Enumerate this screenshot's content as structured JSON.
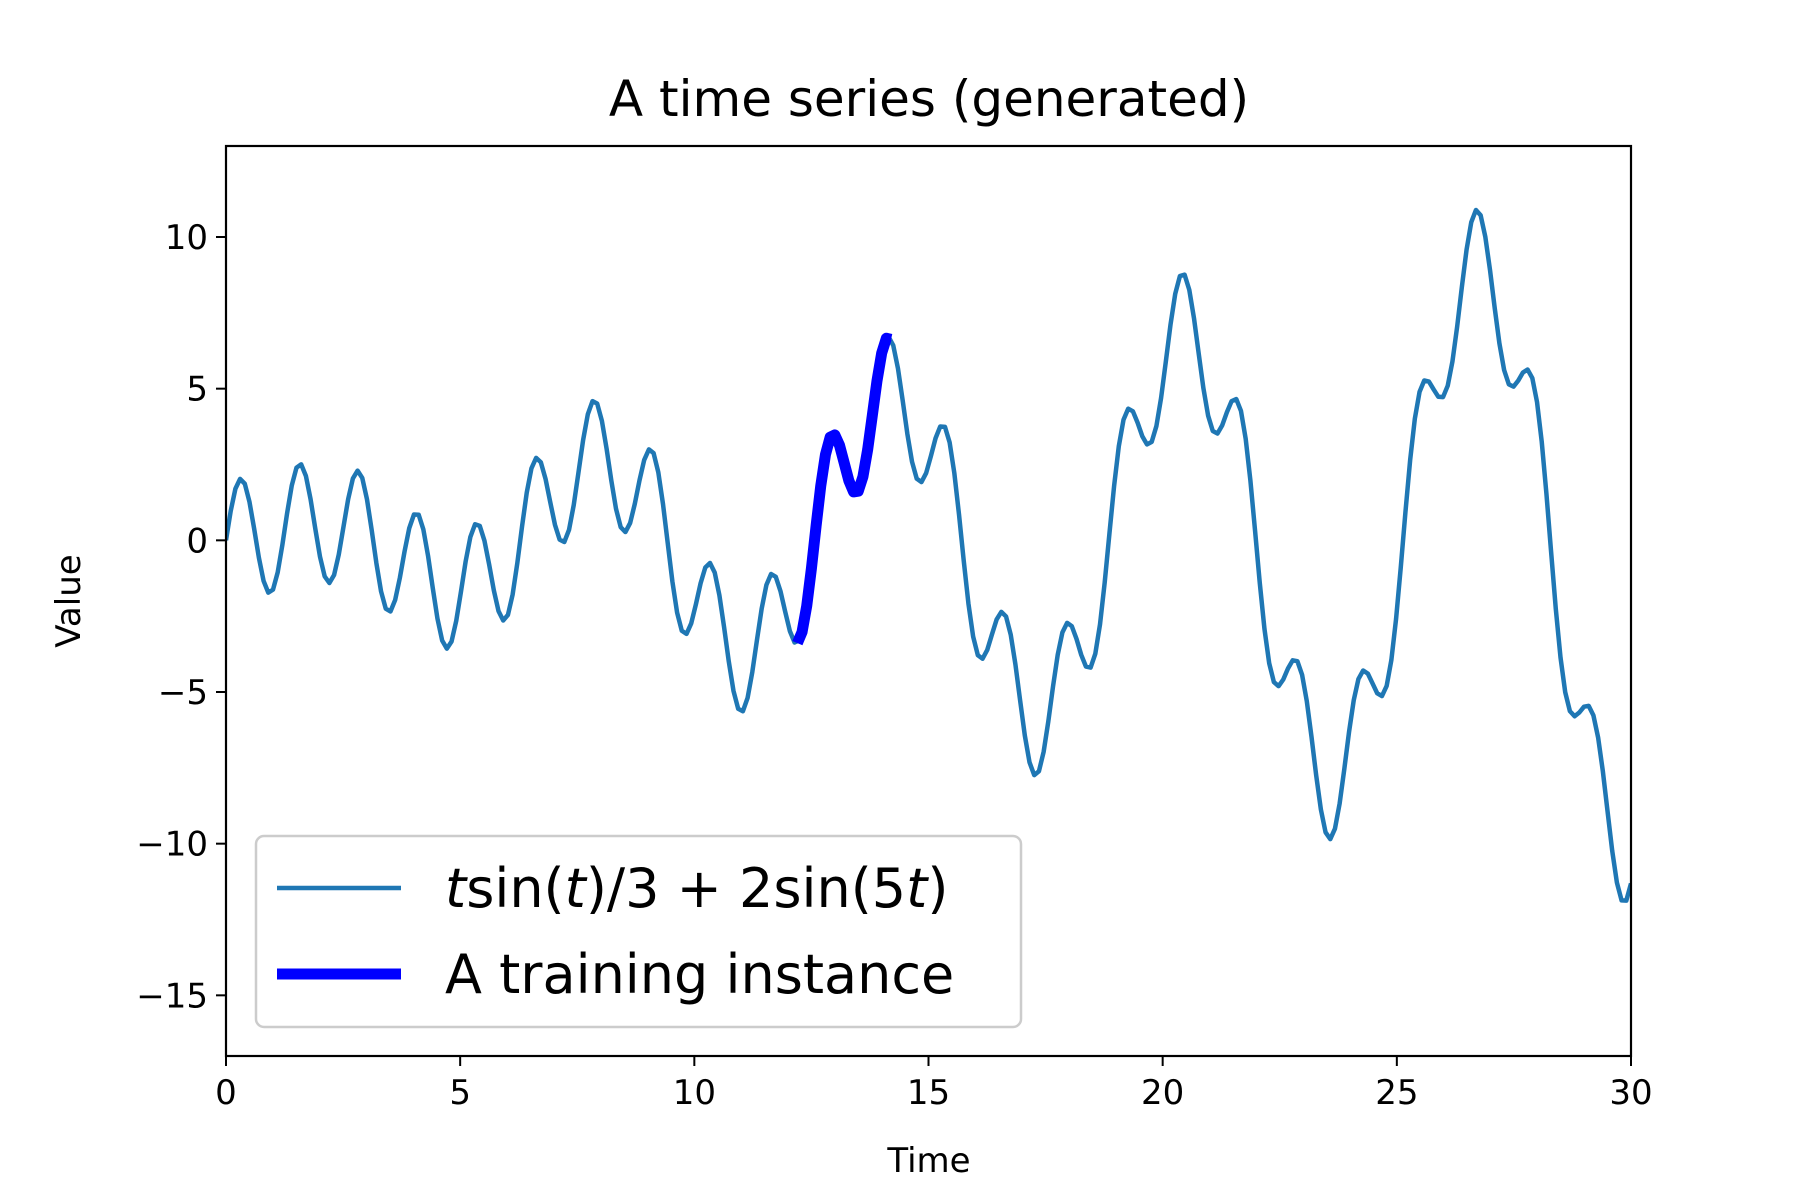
{
  "chart_data": {
    "type": "line",
    "title": "A time series (generated)",
    "xlabel": "Time",
    "ylabel": "Value",
    "xlim": [
      0,
      30
    ],
    "ylim": [
      -17,
      13
    ],
    "xticks": [
      0,
      5,
      10,
      15,
      20,
      25,
      30
    ],
    "yticks": [
      -15,
      -10,
      -5,
      0,
      5,
      10
    ],
    "xtick_labels": [
      "0",
      "5",
      "10",
      "15",
      "20",
      "25",
      "30"
    ],
    "ytick_labels": [
      "−15",
      "−10",
      "−5",
      "0",
      "5",
      "10"
    ],
    "grid": false,
    "legend_placement": "lower-left",
    "series": [
      {
        "name": "tsin(t)/3 + 2sin(5t)",
        "color": "#1f77b4",
        "x_start": 0,
        "x_end": 30,
        "samples": 300
      },
      {
        "name": "A training instance",
        "color": "#0000ff",
        "x_start": 12.2,
        "x_end": 14.2,
        "samples": 21
      }
    ],
    "legend": [
      {
        "label_parts": [
          {
            "text": "t",
            "italic": true
          },
          {
            "text": "sin(",
            "italic": false
          },
          {
            "text": "t",
            "italic": true
          },
          {
            "text": ")/3 + 2sin(5",
            "italic": false
          },
          {
            "text": "t",
            "italic": true
          },
          {
            "text": ")",
            "italic": false
          }
        ],
        "color": "#1f77b4"
      },
      {
        "label": "A training instance",
        "color": "#0000ff"
      }
    ]
  }
}
